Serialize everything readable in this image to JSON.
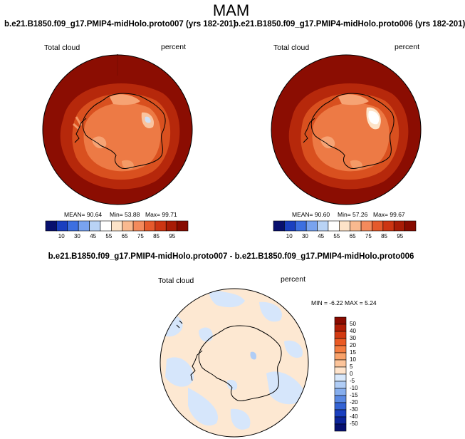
{
  "header": {
    "title": "MAM"
  },
  "panels": [
    {
      "title": "b.e21.B1850.f09_g17.PMIP4-midHolo.proto007 (yrs 182-201)",
      "left_label": "Total cloud",
      "right_label": "percent",
      "stats": {
        "mean": "MEAN= 90.64",
        "min": "Min= 53.88",
        "max": "Max= 99.71"
      }
    },
    {
      "title": "b.e21.B1850.f09_g17.PMIP4-midHolo.proto006 (yrs 182-201)",
      "left_label": "Total cloud",
      "right_label": "percent",
      "stats": {
        "mean": "MEAN= 90.60",
        "min": "Min= 57.26",
        "max": "Max= 99.67"
      }
    },
    {
      "title": "b.e21.B1850.f09_g17.PMIP4-midHolo.proto007 - b.e21.B1850.f09_g17.PMIP4-midHolo.proto006",
      "left_label": "Total cloud",
      "right_label": "percent",
      "stats": {
        "minmax": "MIN = -6.22 MAX = 5.24"
      }
    }
  ],
  "colorbar_top": {
    "labels": [
      "10",
      "30",
      "45",
      "55",
      "65",
      "75",
      "85",
      "95"
    ],
    "colors": [
      "#08106e",
      "#1a3fbf",
      "#3d6fe0",
      "#79a3ef",
      "#b9d3f5",
      "#ffffff",
      "#fde3c8",
      "#f9b98f",
      "#f38a5c",
      "#e55a2c",
      "#cc3512",
      "#a81c06",
      "#870b00"
    ]
  },
  "colorbar_diff": {
    "labels": [
      "50",
      "40",
      "30",
      "20",
      "15",
      "10",
      "5",
      "0",
      "-5",
      "-10",
      "-15",
      "-20",
      "-30",
      "-40",
      "-50"
    ],
    "colors": [
      "#8a0b00",
      "#b01d05",
      "#d23a12",
      "#ea5a24",
      "#f47c40",
      "#f9a26a",
      "#fcc49a",
      "#ffe4cc",
      "#d8e8fb",
      "#b0cdf6",
      "#86aeee",
      "#5a89e3",
      "#3463d4",
      "#1a3fbf",
      "#0c249a",
      "#061070"
    ]
  },
  "chart_data": [
    {
      "type": "heatmap",
      "title": "b.e21.B1850.f09_g17.PMIP4-midHolo.proto007 (yrs 182-201)",
      "variable": "Total cloud",
      "units": "percent",
      "mean": 90.64,
      "min": 53.88,
      "max": 99.71,
      "colorbar_levels": [
        10,
        30,
        45,
        55,
        65,
        75,
        85,
        95
      ]
    },
    {
      "type": "heatmap",
      "title": "b.e21.B1850.f09_g17.PMIP4-midHolo.proto006 (yrs 182-201)",
      "variable": "Total cloud",
      "units": "percent",
      "mean": 90.6,
      "min": 57.26,
      "max": 99.67,
      "colorbar_levels": [
        10,
        30,
        45,
        55,
        65,
        75,
        85,
        95
      ]
    },
    {
      "type": "heatmap",
      "title": "b.e21.B1850.f09_g17.PMIP4-midHolo.proto007 - b.e21.B1850.f09_g17.PMIP4-midHolo.proto006",
      "variable": "Total cloud",
      "units": "percent",
      "min": -6.22,
      "max": 5.24,
      "colorbar_levels": [
        50,
        40,
        30,
        20,
        15,
        10,
        5,
        0,
        -5,
        -10,
        -15,
        -20,
        -30,
        -40,
        -50
      ]
    }
  ]
}
